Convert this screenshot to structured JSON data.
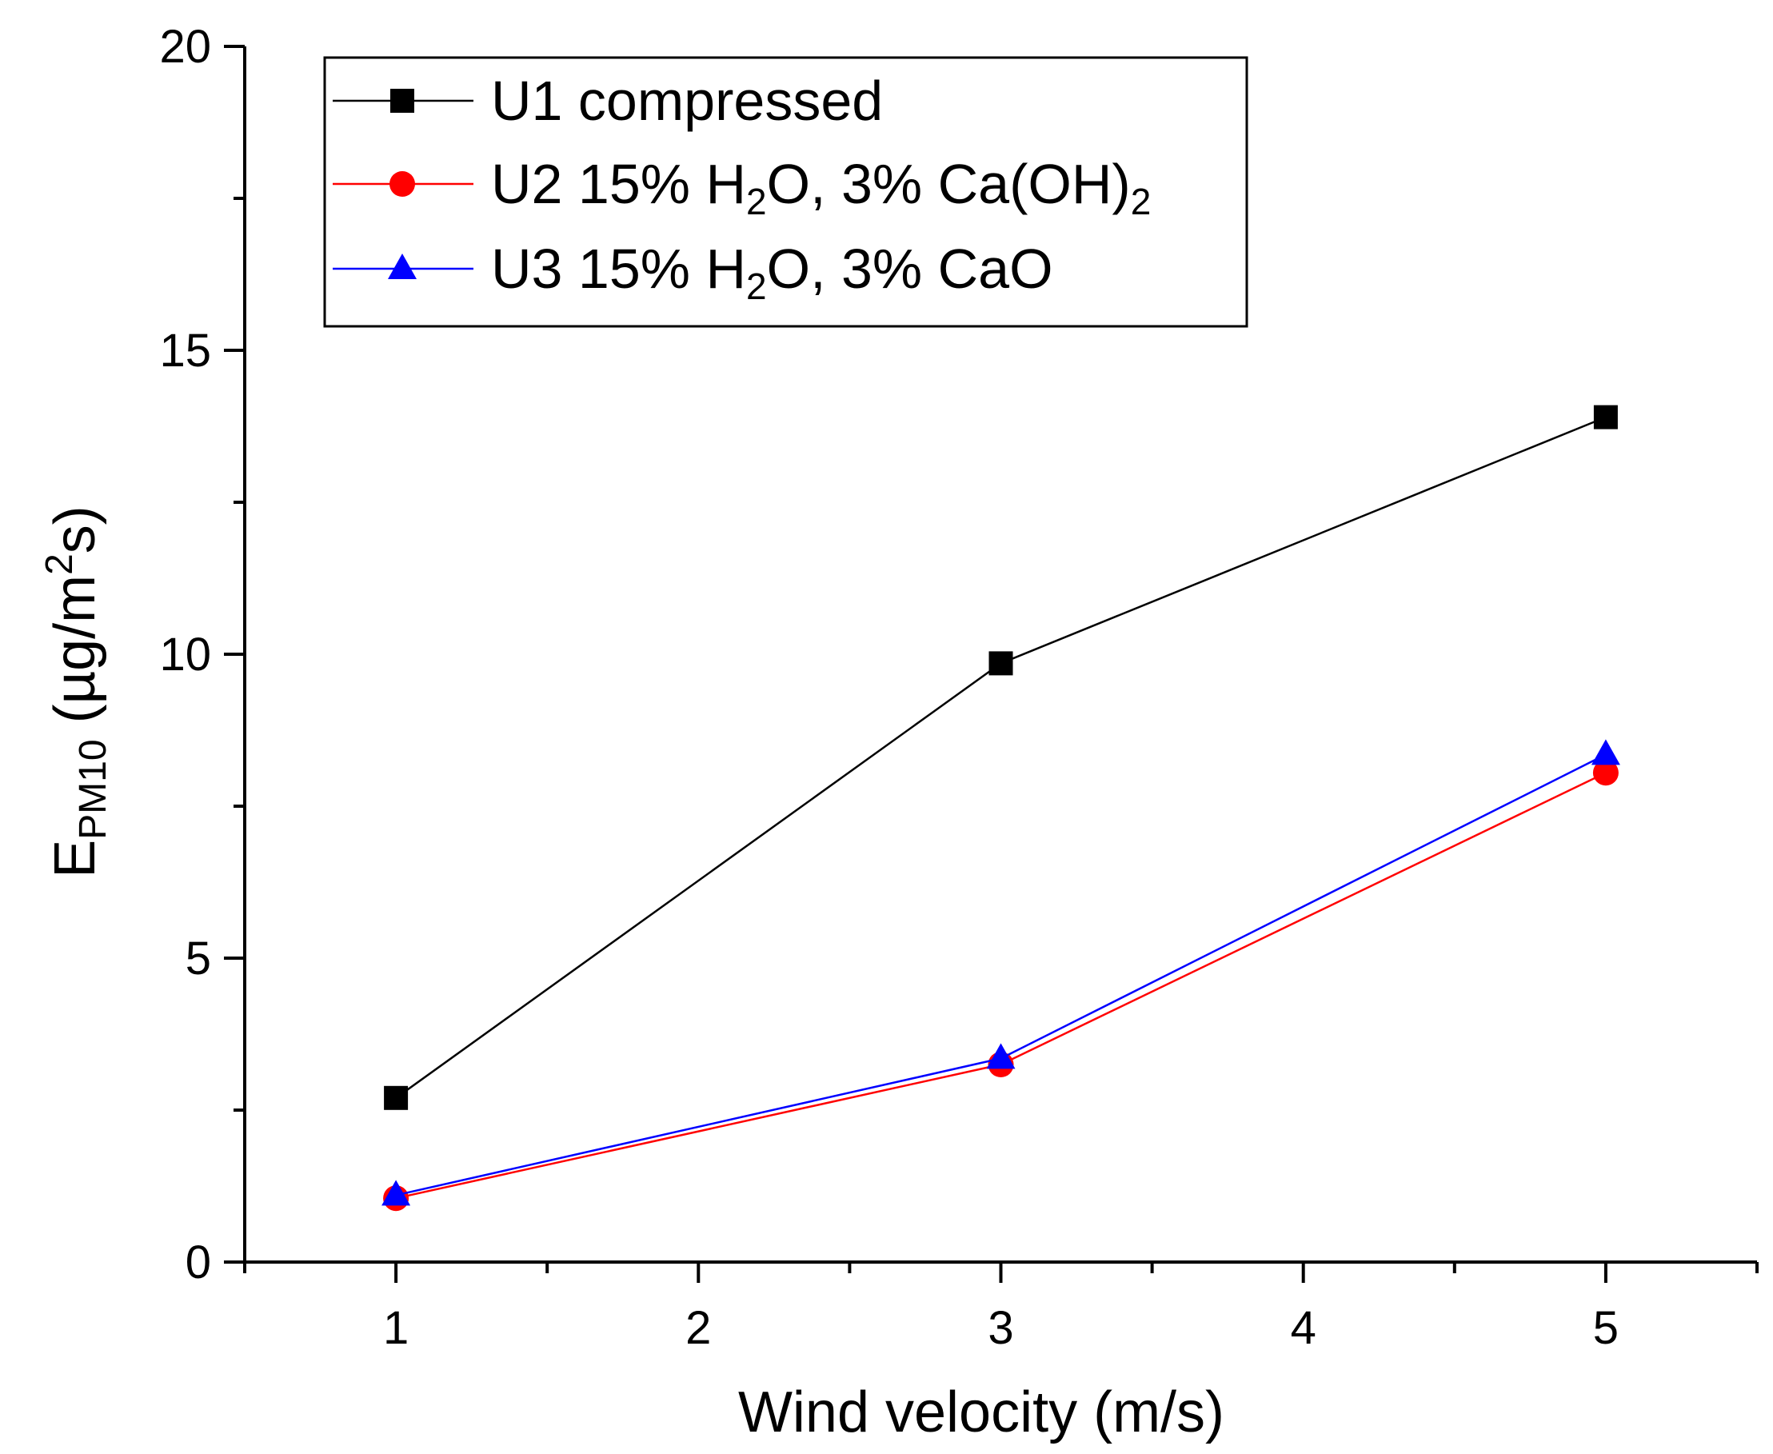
{
  "chart_data": {
    "type": "line",
    "title": "",
    "xlabel": "Wind velocity (m/s)",
    "ylabel": {
      "main": "E",
      "subscript": "PM10",
      "units_prefix": " (µg/m",
      "units_superscript": "2",
      "units_suffix": "s)"
    },
    "xlim": [
      0.5,
      5.5
    ],
    "ylim": [
      0,
      20
    ],
    "x_ticks": [
      1,
      2,
      3,
      4,
      5
    ],
    "x_tick_labels": [
      "1",
      "2",
      "3",
      "4",
      "5"
    ],
    "y_ticks": [
      0,
      5,
      10,
      15,
      20
    ],
    "y_tick_labels": [
      "0",
      "5",
      "10",
      "15",
      "20"
    ],
    "grid": false,
    "legend_position": "top-left",
    "series": [
      {
        "name": "U1 compressed",
        "label_parts": [
          {
            "t": "U1 compressed"
          }
        ],
        "marker": "square",
        "color": "#000000",
        "x": [
          1,
          3,
          5
        ],
        "values": [
          2.7,
          9.85,
          13.9
        ]
      },
      {
        "name": "U2 15% H2O, 3% Ca(OH)2",
        "label_parts": [
          {
            "t": "U2 15% H"
          },
          {
            "t": "2",
            "sub": true
          },
          {
            "t": "O, 3% Ca(OH)"
          },
          {
            "t": "2",
            "sub": true
          }
        ],
        "marker": "circle",
        "color": "#ff0000",
        "x": [
          1,
          3,
          5
        ],
        "values": [
          1.05,
          3.25,
          8.05
        ]
      },
      {
        "name": "U3 15% H2O, 3% CaO",
        "label_parts": [
          {
            "t": "U3 15% H"
          },
          {
            "t": "2",
            "sub": true
          },
          {
            "t": "O, 3% CaO"
          }
        ],
        "marker": "triangle",
        "color": "#0000ff",
        "x": [
          1,
          3,
          5
        ],
        "values": [
          1.1,
          3.35,
          8.35
        ]
      }
    ]
  }
}
